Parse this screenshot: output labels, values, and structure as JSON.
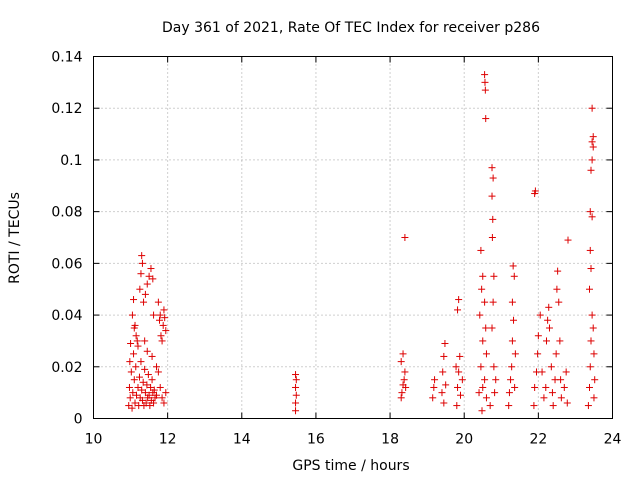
{
  "chart_data": {
    "type": "scatter",
    "title": "Day 361 of 2021, Rate Of TEC Index for receiver p286",
    "xlabel": "GPS time / hours",
    "ylabel": "ROTI / TECUs",
    "xlim": [
      10,
      24
    ],
    "ylim": [
      0,
      0.14
    ],
    "grid": true,
    "marker": "+",
    "marker_color": "#dd0000",
    "x_ticks": [
      "10",
      "12",
      "14",
      "16",
      "18",
      "20",
      "22",
      "24"
    ],
    "y_ticks": [
      "0",
      "0.02",
      "0.04",
      "0.06",
      "0.08",
      "0.1",
      "0.12",
      "0.14"
    ],
    "series": [
      {
        "name": "ROTI",
        "points": [
          [
            10.95,
            0.005
          ],
          [
            10.97,
            0.012
          ],
          [
            10.99,
            0.008
          ],
          [
            11.02,
            0.018
          ],
          [
            11.04,
            0.004
          ],
          [
            11.06,
            0.01
          ],
          [
            11.08,
            0.025
          ],
          [
            11.1,
            0.015
          ],
          [
            11.12,
            0.006
          ],
          [
            11.14,
            0.02
          ],
          [
            11.16,
            0.009
          ],
          [
            11.18,
            0.03
          ],
          [
            11.2,
            0.012
          ],
          [
            11.22,
            0.005
          ],
          [
            11.24,
            0.016
          ],
          [
            11.26,
            0.008
          ],
          [
            11.28,
            0.022
          ],
          [
            11.3,
            0.011
          ],
          [
            11.32,
            0.007
          ],
          [
            11.34,
            0.014
          ],
          [
            11.36,
            0.005
          ],
          [
            11.38,
            0.019
          ],
          [
            11.4,
            0.01
          ],
          [
            11.42,
            0.006
          ],
          [
            11.44,
            0.013
          ],
          [
            11.46,
            0.008
          ],
          [
            11.48,
            0.017
          ],
          [
            11.5,
            0.009
          ],
          [
            11.52,
            0.005
          ],
          [
            11.54,
            0.012
          ],
          [
            11.56,
            0.007
          ],
          [
            11.58,
            0.015
          ],
          [
            11.6,
            0.01
          ],
          [
            11.62,
            0.006
          ],
          [
            11.64,
            0.011
          ],
          [
            11.66,
            0.008
          ],
          [
            11.05,
            0.04
          ],
          [
            11.08,
            0.046
          ],
          [
            11.1,
            0.035
          ],
          [
            11.15,
            0.032
          ],
          [
            11.2,
            0.028
          ],
          [
            11.25,
            0.05
          ],
          [
            11.28,
            0.056
          ],
          [
            11.3,
            0.063
          ],
          [
            11.32,
            0.06
          ],
          [
            11.35,
            0.045
          ],
          [
            11.4,
            0.048
          ],
          [
            11.45,
            0.052
          ],
          [
            11.5,
            0.055
          ],
          [
            11.55,
            0.058
          ],
          [
            11.6,
            0.054
          ],
          [
            11.62,
            0.04
          ],
          [
            11.0,
            0.029
          ],
          [
            11.12,
            0.036
          ],
          [
            11.45,
            0.026
          ],
          [
            11.58,
            0.024
          ],
          [
            10.98,
            0.022
          ],
          [
            11.38,
            0.03
          ],
          [
            11.7,
            0.02
          ],
          [
            11.75,
            0.045
          ],
          [
            11.78,
            0.038
          ],
          [
            11.8,
            0.04
          ],
          [
            11.82,
            0.032
          ],
          [
            11.85,
            0.03
          ],
          [
            11.88,
            0.036
          ],
          [
            11.9,
            0.042
          ],
          [
            11.92,
            0.039
          ],
          [
            11.95,
            0.034
          ],
          [
            11.8,
            0.012
          ],
          [
            11.85,
            0.008
          ],
          [
            11.9,
            0.006
          ],
          [
            11.95,
            0.01
          ],
          [
            11.75,
            0.018
          ],
          [
            11.7,
            0.009
          ],
          [
            15.45,
            0.003
          ],
          [
            15.45,
            0.006
          ],
          [
            15.47,
            0.009
          ],
          [
            15.45,
            0.012
          ],
          [
            15.47,
            0.015
          ],
          [
            15.45,
            0.017
          ],
          [
            18.3,
            0.008
          ],
          [
            18.32,
            0.01
          ],
          [
            18.35,
            0.013
          ],
          [
            18.38,
            0.015
          ],
          [
            18.4,
            0.018
          ],
          [
            18.3,
            0.022
          ],
          [
            18.35,
            0.025
          ],
          [
            18.42,
            0.012
          ],
          [
            18.4,
            0.07
          ],
          [
            19.15,
            0.008
          ],
          [
            19.18,
            0.012
          ],
          [
            19.2,
            0.015
          ],
          [
            19.4,
            0.01
          ],
          [
            19.42,
            0.018
          ],
          [
            19.45,
            0.024
          ],
          [
            19.48,
            0.029
          ],
          [
            19.5,
            0.013
          ],
          [
            19.45,
            0.006
          ],
          [
            19.8,
            0.005
          ],
          [
            19.82,
            0.012
          ],
          [
            19.85,
            0.018
          ],
          [
            19.88,
            0.024
          ],
          [
            19.82,
            0.042
          ],
          [
            19.85,
            0.046
          ],
          [
            19.9,
            0.009
          ],
          [
            19.78,
            0.02
          ],
          [
            19.95,
            0.015
          ],
          [
            20.4,
            0.01
          ],
          [
            20.45,
            0.02
          ],
          [
            20.5,
            0.03
          ],
          [
            20.42,
            0.04
          ],
          [
            20.47,
            0.05
          ],
          [
            20.45,
            0.065
          ],
          [
            20.5,
            0.055
          ],
          [
            20.55,
            0.045
          ],
          [
            20.58,
            0.035
          ],
          [
            20.6,
            0.025
          ],
          [
            20.55,
            0.015
          ],
          [
            20.6,
            0.008
          ],
          [
            20.55,
            0.133
          ],
          [
            20.56,
            0.13
          ],
          [
            20.57,
            0.127
          ],
          [
            20.58,
            0.116
          ],
          [
            20.75,
            0.097
          ],
          [
            20.78,
            0.093
          ],
          [
            20.75,
            0.086
          ],
          [
            20.77,
            0.077
          ],
          [
            20.76,
            0.07
          ],
          [
            20.8,
            0.055
          ],
          [
            20.78,
            0.045
          ],
          [
            20.75,
            0.035
          ],
          [
            20.8,
            0.02
          ],
          [
            20.82,
            0.01
          ],
          [
            20.7,
            0.005
          ],
          [
            20.85,
            0.015
          ],
          [
            20.5,
            0.012
          ],
          [
            20.48,
            0.003
          ],
          [
            21.2,
            0.005
          ],
          [
            21.22,
            0.01
          ],
          [
            21.25,
            0.015
          ],
          [
            21.28,
            0.02
          ],
          [
            21.3,
            0.03
          ],
          [
            21.32,
            0.059
          ],
          [
            21.35,
            0.055
          ],
          [
            21.3,
            0.045
          ],
          [
            21.33,
            0.038
          ],
          [
            21.38,
            0.025
          ],
          [
            21.36,
            0.012
          ],
          [
            21.9,
            0.087
          ],
          [
            21.92,
            0.088
          ],
          [
            21.88,
            0.005
          ],
          [
            21.9,
            0.012
          ],
          [
            21.95,
            0.018
          ],
          [
            21.98,
            0.025
          ],
          [
            22.0,
            0.032
          ],
          [
            22.05,
            0.04
          ],
          [
            22.1,
            0.018
          ],
          [
            22.15,
            0.008
          ],
          [
            22.2,
            0.012
          ],
          [
            22.22,
            0.03
          ],
          [
            22.25,
            0.038
          ],
          [
            22.28,
            0.043
          ],
          [
            22.3,
            0.035
          ],
          [
            22.35,
            0.02
          ],
          [
            22.38,
            0.01
          ],
          [
            22.4,
            0.005
          ],
          [
            22.45,
            0.015
          ],
          [
            22.48,
            0.025
          ],
          [
            22.5,
            0.05
          ],
          [
            22.52,
            0.057
          ],
          [
            22.55,
            0.045
          ],
          [
            22.58,
            0.03
          ],
          [
            22.6,
            0.015
          ],
          [
            22.62,
            0.008
          ],
          [
            22.7,
            0.012
          ],
          [
            22.75,
            0.018
          ],
          [
            22.8,
            0.069
          ],
          [
            22.78,
            0.006
          ],
          [
            23.35,
            0.005
          ],
          [
            23.38,
            0.012
          ],
          [
            23.4,
            0.02
          ],
          [
            23.42,
            0.03
          ],
          [
            23.45,
            0.04
          ],
          [
            23.38,
            0.05
          ],
          [
            23.42,
            0.058
          ],
          [
            23.45,
            0.078
          ],
          [
            23.4,
            0.08
          ],
          [
            23.42,
            0.096
          ],
          [
            23.45,
            0.1
          ],
          [
            23.48,
            0.105
          ],
          [
            23.45,
            0.107
          ],
          [
            23.48,
            0.109
          ],
          [
            23.45,
            0.12
          ],
          [
            23.5,
            0.025
          ],
          [
            23.52,
            0.015
          ],
          [
            23.48,
            0.035
          ],
          [
            23.5,
            0.008
          ],
          [
            23.4,
            0.065
          ]
        ]
      }
    ]
  }
}
